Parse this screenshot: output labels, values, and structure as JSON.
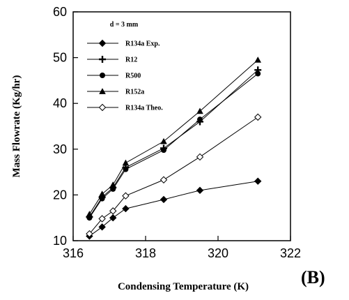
{
  "panel_label": "(B)",
  "chart_data": {
    "type": "line",
    "annotation": "d = 3 mm",
    "xlabel": "Condensing Temperature (K)",
    "ylabel": "Mass Flowrate (Kg/hr)",
    "xlim": [
      316,
      322
    ],
    "ylim": [
      10,
      60
    ],
    "xticks": [
      316,
      318,
      320,
      322
    ],
    "yticks": [
      10,
      20,
      30,
      40,
      50,
      60
    ],
    "grid": false,
    "legend_position": "top-left",
    "series": [
      {
        "name": "R134a Exp.",
        "marker": "diamond-filled",
        "x": [
          316.45,
          316.8,
          317.1,
          317.45,
          318.5,
          319.5,
          321.1
        ],
        "y": [
          11.0,
          13.0,
          15.0,
          17.0,
          19.0,
          21.0,
          23.0
        ]
      },
      {
        "name": "R12",
        "marker": "plus",
        "x": [
          316.45,
          316.8,
          317.1,
          317.45,
          318.5,
          319.5,
          321.1
        ],
        "y": [
          15.2,
          19.5,
          21.6,
          26.0,
          30.2,
          36.0,
          47.3
        ]
      },
      {
        "name": "R500",
        "marker": "circle-filled",
        "x": [
          316.45,
          316.8,
          317.1,
          317.45,
          318.5,
          319.5,
          321.1
        ],
        "y": [
          15.0,
          19.2,
          21.3,
          25.6,
          29.8,
          36.5,
          46.5
        ]
      },
      {
        "name": "R152a",
        "marker": "triangle-filled",
        "x": [
          316.45,
          316.8,
          317.1,
          317.45,
          318.5,
          319.5,
          321.1
        ],
        "y": [
          15.8,
          20.2,
          22.2,
          27.0,
          31.7,
          38.3,
          49.5
        ]
      },
      {
        "name": "R134a Theo.",
        "marker": "diamond-open",
        "x": [
          316.45,
          316.8,
          317.1,
          317.45,
          318.5,
          319.5,
          321.1
        ],
        "y": [
          11.5,
          14.8,
          16.5,
          19.8,
          23.3,
          28.3,
          37.0
        ]
      }
    ]
  }
}
